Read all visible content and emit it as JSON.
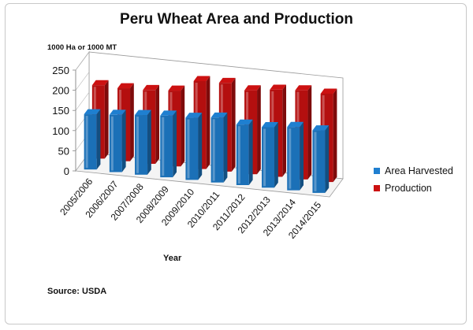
{
  "chart_data": {
    "type": "bar",
    "title": "Peru Wheat Area and Production",
    "ylabel": "1000 Ha or 1000 MT",
    "xlabel": "Year",
    "source": "Source:  USDA",
    "categories": [
      "2005/2006",
      "2006/2007",
      "2007/2008",
      "2008/2009",
      "2009/2010",
      "2010/2011",
      "2011/2012",
      "2012/2013",
      "2013/2014",
      "2014/2015"
    ],
    "series": [
      {
        "name": "Area Harvested",
        "color": "#1f7fd0",
        "values": [
          137,
          142,
          148,
          153,
          154,
          161,
          150,
          150,
          157,
          155
        ]
      },
      {
        "name": "Production",
        "color": "#cc1111",
        "values": [
          182,
          181,
          183,
          188,
          218,
          220,
          208,
          216,
          221,
          219
        ]
      }
    ],
    "ylim": [
      0,
      250
    ],
    "yticks": [
      "0",
      "50",
      "100",
      "150",
      "200",
      "250"
    ],
    "legend": "right",
    "style": "3D clustered columns",
    "grid": false
  }
}
